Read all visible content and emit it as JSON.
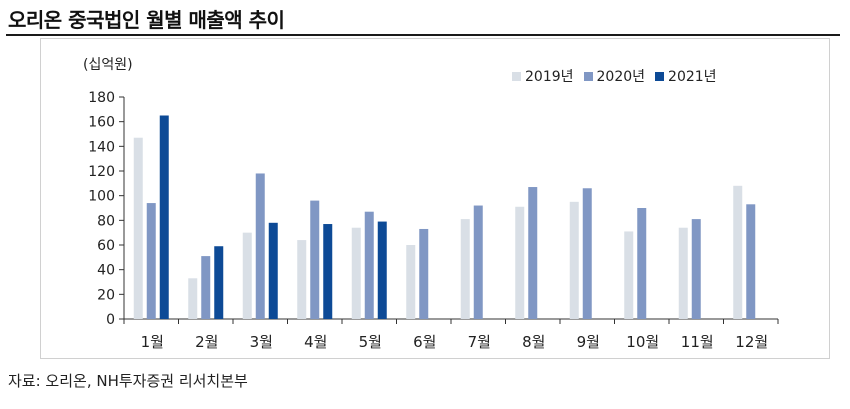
{
  "title": "오리온 중국법인 월별 매출액 추이",
  "source": "자료:  오리온, NH투자증권 리서치본부",
  "chart_data": {
    "type": "bar",
    "title": "오리온 중국법인 월별 매출액 추이",
    "unit_label": "(십억원)",
    "xlabel": "",
    "ylabel": "(십억원)",
    "ylim": [
      0,
      180
    ],
    "yticks": [
      0,
      20,
      40,
      60,
      80,
      100,
      120,
      140,
      160,
      180
    ],
    "grid": false,
    "legend_position": "top-right",
    "categories": [
      "1월",
      "2월",
      "3월",
      "4월",
      "5월",
      "6월",
      "7월",
      "8월",
      "9월",
      "10월",
      "11월",
      "12월"
    ],
    "series": [
      {
        "name": "2019년",
        "color": "#d9dfe6",
        "values": [
          147,
          33,
          70,
          64,
          74,
          60,
          81,
          91,
          95,
          71,
          74,
          108
        ]
      },
      {
        "name": "2020년",
        "color": "#8097c4",
        "values": [
          94,
          51,
          118,
          96,
          87,
          73,
          92,
          107,
          106,
          90,
          81,
          93
        ]
      },
      {
        "name": "2021년",
        "color": "#0d4a96",
        "values": [
          165,
          59,
          78,
          77,
          79,
          null,
          null,
          null,
          null,
          null,
          null,
          null
        ]
      }
    ]
  }
}
